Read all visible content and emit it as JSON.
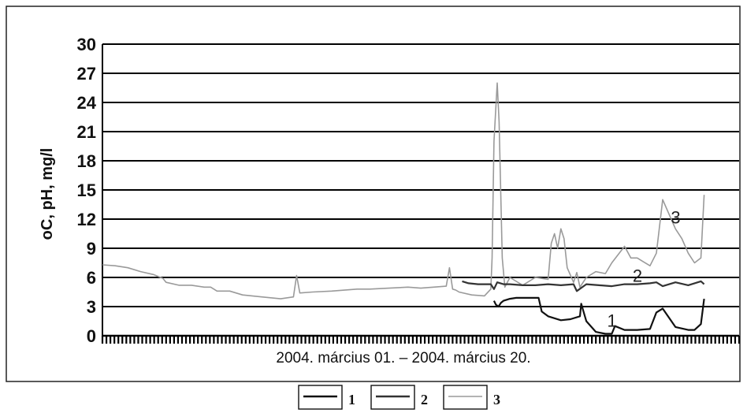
{
  "chart_data": {
    "type": "line",
    "title": "",
    "xlabel": "2004. március 01. – 2004. március 20.",
    "ylabel": "oC, pH, mg/l",
    "ylim": [
      0,
      30
    ],
    "yticks": [
      0,
      3,
      6,
      9,
      12,
      15,
      18,
      21,
      24,
      27,
      30
    ],
    "ytick_labels": [
      "0",
      "3",
      "6",
      "9",
      "12",
      "15",
      "18",
      "21",
      "24",
      "27",
      "30"
    ],
    "grid": true,
    "legend_position": "bottom-center",
    "colors": {
      "1": "#111111",
      "2": "#333333",
      "3": "#9a9a9a",
      "grid": "#000000"
    },
    "series": [
      {
        "name": "1",
        "label": "1",
        "x": [
          0.615,
          0.618,
          0.622,
          0.626,
          0.63,
          0.64,
          0.65,
          0.66,
          0.685,
          0.69,
          0.7,
          0.72,
          0.735,
          0.75,
          0.752,
          0.76,
          0.775,
          0.79,
          0.8,
          0.805,
          0.82,
          0.84,
          0.86,
          0.87,
          0.88,
          0.9,
          0.92,
          0.93,
          0.94,
          0.945
        ],
        "values": [
          3.6,
          3.2,
          3.0,
          3.4,
          3.6,
          3.8,
          3.9,
          3.9,
          3.9,
          2.5,
          2.0,
          1.6,
          1.7,
          2.0,
          3.3,
          1.5,
          0.4,
          0.2,
          0.2,
          1.0,
          0.6,
          0.6,
          0.7,
          2.4,
          2.8,
          0.9,
          0.6,
          0.6,
          1.2,
          3.8
        ]
      },
      {
        "name": "2",
        "label": "2",
        "x": [
          0.565,
          0.575,
          0.59,
          0.61,
          0.615,
          0.62,
          0.63,
          0.64,
          0.66,
          0.68,
          0.7,
          0.72,
          0.74,
          0.745,
          0.76,
          0.78,
          0.8,
          0.82,
          0.84,
          0.86,
          0.87,
          0.88,
          0.9,
          0.92,
          0.94,
          0.945
        ],
        "values": [
          5.6,
          5.4,
          5.3,
          5.3,
          4.8,
          5.5,
          5.3,
          5.3,
          5.2,
          5.2,
          5.3,
          5.2,
          5.3,
          4.6,
          5.3,
          5.2,
          5.1,
          5.3,
          5.3,
          5.4,
          5.5,
          5.1,
          5.5,
          5.2,
          5.6,
          5.3
        ]
      },
      {
        "name": "3",
        "label": "3",
        "x": [
          0.0,
          0.02,
          0.04,
          0.06,
          0.08,
          0.095,
          0.1,
          0.12,
          0.14,
          0.16,
          0.17,
          0.18,
          0.2,
          0.22,
          0.25,
          0.28,
          0.3,
          0.305,
          0.31,
          0.33,
          0.36,
          0.4,
          0.42,
          0.45,
          0.48,
          0.5,
          0.52,
          0.54,
          0.545,
          0.55,
          0.555,
          0.56,
          0.58,
          0.6,
          0.61,
          0.612,
          0.615,
          0.62,
          0.623,
          0.628,
          0.632,
          0.64,
          0.66,
          0.68,
          0.7,
          0.705,
          0.71,
          0.715,
          0.72,
          0.725,
          0.73,
          0.74,
          0.745,
          0.75,
          0.76,
          0.775,
          0.79,
          0.8,
          0.82,
          0.83,
          0.84,
          0.85,
          0.86,
          0.87,
          0.88,
          0.89,
          0.9,
          0.91,
          0.92,
          0.93,
          0.94,
          0.945
        ],
        "values": [
          7.3,
          7.2,
          7.0,
          6.6,
          6.3,
          5.9,
          5.5,
          5.2,
          5.2,
          5.0,
          5.0,
          4.6,
          4.6,
          4.2,
          4.0,
          3.8,
          4.0,
          6.2,
          4.4,
          4.5,
          4.6,
          4.8,
          4.8,
          4.9,
          5.0,
          4.9,
          5.0,
          5.1,
          7.0,
          4.8,
          4.7,
          4.5,
          4.2,
          4.1,
          4.8,
          8.0,
          20.0,
          26.0,
          22.0,
          8.0,
          5.0,
          6.0,
          5.2,
          6.0,
          5.8,
          9.5,
          10.5,
          9.0,
          11.0,
          10.0,
          7.0,
          5.5,
          6.5,
          5.0,
          6.0,
          6.6,
          6.4,
          7.5,
          9.2,
          8.0,
          8.0,
          7.6,
          7.2,
          8.5,
          14.0,
          12.5,
          11.0,
          10.0,
          8.5,
          7.5,
          8.0,
          14.5
        ]
      }
    ],
    "annotations": [
      {
        "text": "1",
        "series": "1"
      },
      {
        "text": "2",
        "series": "2"
      },
      {
        "text": "3",
        "series": "3"
      }
    ]
  }
}
